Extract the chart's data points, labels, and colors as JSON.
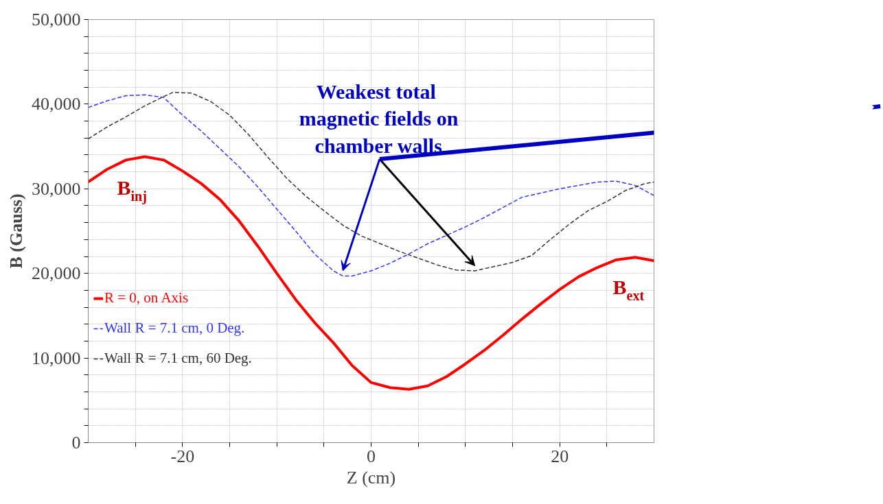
{
  "chart_data": {
    "type": "line",
    "xlabel": "Z (cm)",
    "ylabel": "B (Gauss)",
    "x": [
      -30,
      -28,
      -26,
      -24,
      -22,
      -20,
      -18,
      -16,
      -14,
      -12,
      -10,
      -8,
      -6,
      -4,
      -2,
      0,
      2,
      4,
      6,
      8,
      10,
      12,
      14,
      16,
      18,
      20,
      22,
      24,
      26,
      28,
      30
    ],
    "series": [
      {
        "name": "R = 0, on Axis",
        "color": "#ff0000",
        "line_style": "solid",
        "values": [
          30800,
          32300,
          33400,
          33800,
          33400,
          32100,
          30600,
          28700,
          26200,
          23200,
          20000,
          16900,
          14200,
          11800,
          9100,
          7100,
          6500,
          6300,
          6700,
          7800,
          9300,
          10900,
          12700,
          14600,
          16400,
          18100,
          19600,
          20700,
          21600,
          21900,
          21500
        ]
      },
      {
        "name": "Wall R = 7.1 cm, 0 Deg.",
        "color": "#3333ff",
        "line_style": "dashed",
        "x": [
          -30,
          -28,
          -26,
          -24,
          -22,
          -20,
          -18,
          -16,
          -14,
          -12,
          -10,
          -8,
          -6,
          -4,
          -3,
          -2,
          0,
          2,
          4,
          6,
          8,
          10,
          12,
          14,
          16,
          18,
          20,
          22,
          24,
          26,
          28,
          30
        ],
        "values": [
          39600,
          40400,
          41000,
          41100,
          40800,
          38700,
          36800,
          34700,
          32600,
          30200,
          27600,
          25000,
          22300,
          20300,
          19700,
          19700,
          20300,
          21200,
          22300,
          23500,
          24500,
          25500,
          26600,
          27800,
          29000,
          29500,
          30000,
          30400,
          30800,
          30900,
          30400,
          29200
        ]
      },
      {
        "name": "Wall R = 7.1 cm, 60 Deg.",
        "color": "#333333",
        "line_style": "dashed",
        "x": [
          -30,
          -28,
          -26,
          -24,
          -22,
          -21,
          -19,
          -17,
          -15,
          -13,
          -11,
          -9,
          -7,
          -5,
          -3,
          -1,
          1,
          3,
          5,
          7,
          9,
          11,
          13,
          15,
          17,
          19,
          21,
          23,
          25,
          27,
          29,
          30
        ],
        "values": [
          35900,
          37300,
          38500,
          39800,
          40900,
          41400,
          41300,
          40300,
          38700,
          36400,
          33800,
          31300,
          29200,
          27400,
          25700,
          24400,
          23500,
          22600,
          21800,
          21000,
          20400,
          20300,
          20800,
          21300,
          22100,
          24000,
          25800,
          27400,
          28500,
          29800,
          30600,
          30800
        ]
      }
    ],
    "xlim": [
      -30,
      30
    ],
    "ylim": [
      0,
      50000
    ],
    "xticks": [
      {
        "value": -25,
        "label": null
      },
      -20,
      {
        "value": -15,
        "label": null
      },
      {
        "value": -10,
        "label": null
      },
      {
        "value": -5,
        "label": null
      },
      0,
      {
        "value": 5,
        "label": null
      },
      {
        "value": 10,
        "label": null
      },
      {
        "value": 15,
        "label": null
      },
      20,
      {
        "value": 25,
        "label": null
      }
    ],
    "yticks": [
      {
        "value": 0,
        "label": "0"
      },
      {
        "value": 2000,
        "label": null
      },
      {
        "value": 4000,
        "label": null
      },
      {
        "value": 6000,
        "label": null
      },
      {
        "value": 8000,
        "label": null
      },
      {
        "value": 10000,
        "label": "10,000"
      },
      {
        "value": 12000,
        "label": null
      },
      {
        "value": 14000,
        "label": null
      },
      {
        "value": 16000,
        "label": null
      },
      {
        "value": 18000,
        "label": null
      },
      {
        "value": 20000,
        "label": "20,000"
      },
      {
        "value": 22000,
        "label": null
      },
      {
        "value": 24000,
        "label": null
      },
      {
        "value": 26000,
        "label": null
      },
      {
        "value": 28000,
        "label": null
      },
      {
        "value": 30000,
        "label": "30,000"
      },
      {
        "value": 32000,
        "label": null
      },
      {
        "value": 34000,
        "label": null
      },
      {
        "value": 36000,
        "label": null
      },
      {
        "value": 38000,
        "label": null
      },
      {
        "value": 40000,
        "label": "40,000"
      },
      {
        "value": 42000,
        "label": null
      },
      {
        "value": 44000,
        "label": null
      },
      {
        "value": 46000,
        "label": null
      },
      {
        "value": 48000,
        "label": null
      },
      {
        "value": 50000,
        "label": "50,000"
      }
    ],
    "grid": true,
    "legend": "bottom left",
    "annotations": [
      "B$_{inj}$",
      "B$_{ext}$",
      "Weakest  total magnetic fields on chamber walls"
    ]
  }
}
